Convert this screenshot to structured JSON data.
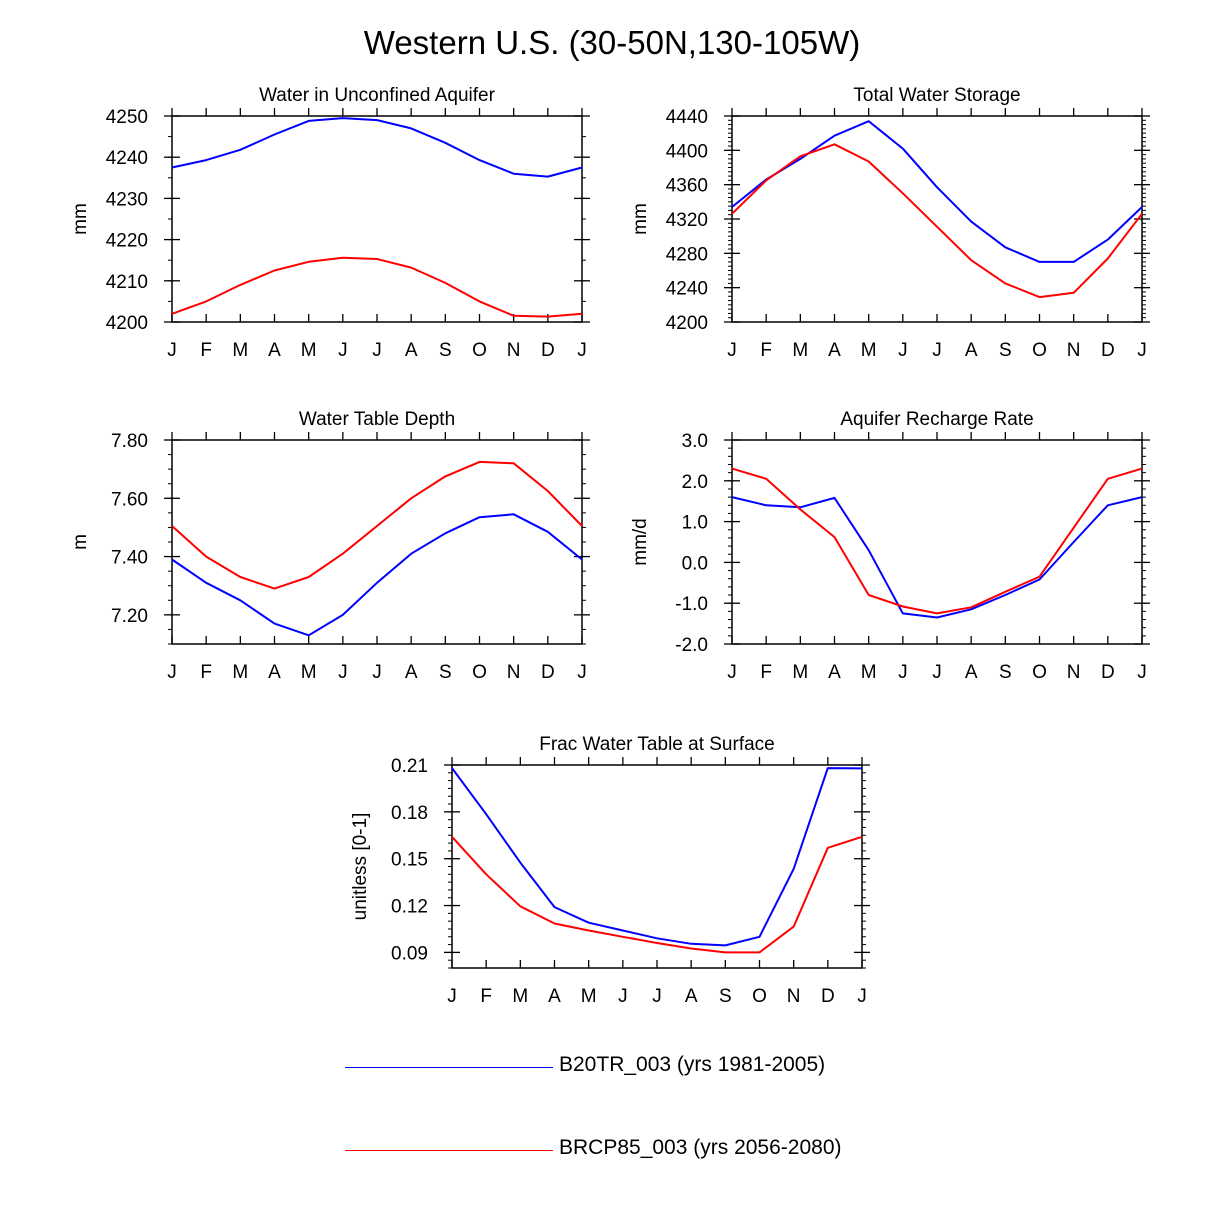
{
  "title": "Western U.S. (30-50N,130-105W)",
  "months": [
    "J",
    "F",
    "M",
    "A",
    "M",
    "J",
    "J",
    "A",
    "S",
    "O",
    "N",
    "D",
    "J"
  ],
  "legend": [
    {
      "label": "B20TR_003 (yrs 1981-2005)",
      "color": "#0000ff"
    },
    {
      "label": "BRCP85_003 (yrs 2056-2080)",
      "color": "#ff0000"
    }
  ],
  "chart_data": [
    {
      "type": "line",
      "title": "Water in Unconfined Aquifer",
      "ylabel": "mm",
      "ylim": [
        4200,
        4250
      ],
      "yticks": [
        4200,
        4210,
        4220,
        4230,
        4240,
        4250
      ],
      "yticklabels": [
        "4200",
        "4210",
        "4220",
        "4230",
        "4240",
        "4250"
      ],
      "yminor": 2,
      "series": [
        {
          "name": "B20TR_003 (yrs 1981-2005)",
          "color": "#0000ff",
          "values": [
            4237.5,
            4239.3,
            4241.8,
            4245.5,
            4248.8,
            4249.5,
            4249.0,
            4247.0,
            4243.5,
            4239.3,
            4236.0,
            4235.3,
            4237.5
          ]
        },
        {
          "name": "BRCP85_003 (yrs 2056-2080)",
          "color": "#ff0000",
          "values": [
            4202.0,
            4205.0,
            4209.0,
            4212.5,
            4214.6,
            4215.6,
            4215.3,
            4213.2,
            4209.5,
            4205.0,
            4201.5,
            4201.3,
            4202.0
          ]
        }
      ]
    },
    {
      "type": "line",
      "title": "Total Water Storage",
      "ylabel": "mm",
      "ylim": [
        4200,
        4440
      ],
      "yticks": [
        4200,
        4240,
        4280,
        4320,
        4360,
        4400,
        4440
      ],
      "yticklabels": [
        "4200",
        "4240",
        "4280",
        "4320",
        "4360",
        "4400",
        "4440"
      ],
      "yminor": 8,
      "series": [
        {
          "name": "B20TR_003 (yrs 1981-2005)",
          "color": "#0000ff",
          "values": [
            4334,
            4366,
            4390,
            4417,
            4434,
            4402,
            4357,
            4317,
            4287,
            4270,
            4270,
            4296,
            4334
          ]
        },
        {
          "name": "BRCP85_003 (yrs 2056-2080)",
          "color": "#ff0000",
          "values": [
            4326,
            4365,
            4393,
            4407,
            4387,
            4350,
            4311,
            4272,
            4245,
            4229,
            4234,
            4274,
            4326
          ]
        }
      ]
    },
    {
      "type": "line",
      "title": "Water Table Depth",
      "ylabel": "m",
      "ylim": [
        7.1,
        7.8
      ],
      "yticks": [
        7.2,
        7.4,
        7.6,
        7.8
      ],
      "yticklabels": [
        "7.20",
        "7.40",
        "7.60",
        "7.80"
      ],
      "yminor": 4,
      "series": [
        {
          "name": "B20TR_003 (yrs 1981-2005)",
          "color": "#0000ff",
          "values": [
            7.39,
            7.31,
            7.25,
            7.17,
            7.13,
            7.2,
            7.31,
            7.41,
            7.48,
            7.535,
            7.545,
            7.485,
            7.39
          ]
        },
        {
          "name": "BRCP85_003 (yrs 2056-2080)",
          "color": "#ff0000",
          "values": [
            7.505,
            7.4,
            7.33,
            7.29,
            7.33,
            7.41,
            7.505,
            7.6,
            7.675,
            7.725,
            7.72,
            7.625,
            7.505
          ]
        }
      ]
    },
    {
      "type": "line",
      "title": "Aquifer Recharge Rate",
      "ylabel": "mm/d",
      "ylim": [
        -2.0,
        3.0
      ],
      "yticks": [
        -2.0,
        -1.0,
        0.0,
        1.0,
        2.0,
        3.0
      ],
      "yticklabels": [
        "-2.0",
        "-1.0",
        "0.0",
        "1.0",
        "2.0",
        "3.0"
      ],
      "yminor": 5,
      "series": [
        {
          "name": "B20TR_003 (yrs 1981-2005)",
          "color": "#0000ff",
          "values": [
            1.6,
            1.4,
            1.35,
            1.58,
            0.3,
            -1.25,
            -1.35,
            -1.15,
            -0.8,
            -0.42,
            0.5,
            1.4,
            1.6
          ]
        },
        {
          "name": "BRCP85_003 (yrs 2056-2080)",
          "color": "#ff0000",
          "values": [
            2.3,
            2.05,
            1.3,
            0.62,
            -0.8,
            -1.08,
            -1.25,
            -1.1,
            -0.72,
            -0.35,
            0.85,
            2.05,
            2.3
          ]
        }
      ]
    },
    {
      "type": "line",
      "title": "Frac Water Table at Surface",
      "ylabel": "unitless [0-1]",
      "ylim": [
        0.08,
        0.21
      ],
      "yticks": [
        0.09,
        0.12,
        0.15,
        0.18,
        0.21
      ],
      "yticklabels": [
        "0.09",
        "0.12",
        "0.15",
        "0.18",
        "0.21"
      ],
      "yminor": 6,
      "series": [
        {
          "name": "B20TR_003 (yrs 1981-2005)",
          "color": "#0000ff",
          "values": [
            0.208,
            0.1785,
            0.1475,
            0.119,
            0.109,
            0.104,
            0.099,
            0.0955,
            0.0945,
            0.1,
            0.1435,
            0.208,
            0.2078
          ]
        },
        {
          "name": "BRCP85_003 (yrs 2056-2080)",
          "color": "#ff0000",
          "values": [
            0.164,
            0.14,
            0.1195,
            0.1085,
            0.104,
            0.1,
            0.096,
            0.0925,
            0.09,
            0.09,
            0.1065,
            0.157,
            0.164
          ]
        }
      ]
    }
  ]
}
